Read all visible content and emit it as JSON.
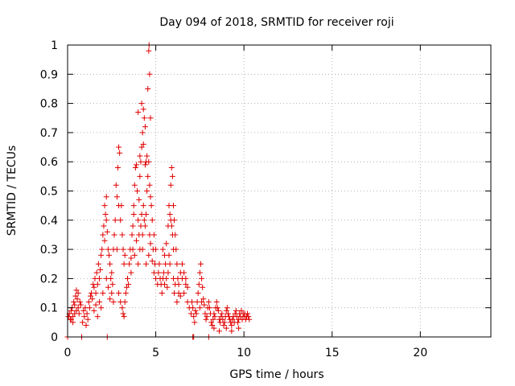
{
  "chart_data": {
    "type": "scatter",
    "title": "Day 094 of 2018, SRMTID for receiver roji",
    "xlabel": "GPS time / hours",
    "ylabel": "SRMTID / TECUs",
    "xlim": [
      0,
      24
    ],
    "ylim": [
      0,
      1
    ],
    "grid": true,
    "marker": "+",
    "marker_color": "#e00000",
    "x_ticks": [
      0,
      5,
      10,
      15,
      20
    ],
    "x_tick_labels": [
      "0",
      "5",
      "10",
      "15",
      "20"
    ],
    "y_ticks": [
      0,
      0.1,
      0.2,
      0.3,
      0.4,
      0.5,
      0.6,
      0.7,
      0.8,
      0.9,
      1
    ],
    "y_tick_labels": [
      "0",
      "0.1",
      "0.2",
      "0.3",
      "0.4",
      "0.5",
      "0.6",
      "0.7",
      "0.8",
      "0.9",
      "1"
    ],
    "series": [
      {
        "name": "SRMTID",
        "points": [
          [
            0.0,
            0.0
          ],
          [
            0.8,
            0.0
          ],
          [
            2.25,
            0.0
          ],
          [
            7.1,
            0.0
          ],
          [
            7.15,
            0.0
          ],
          [
            8.0,
            0.0
          ],
          [
            0.05,
            0.07
          ],
          [
            0.1,
            0.08
          ],
          [
            0.15,
            0.06
          ],
          [
            0.2,
            0.09
          ],
          [
            0.25,
            0.1
          ],
          [
            0.3,
            0.07
          ],
          [
            0.35,
            0.12
          ],
          [
            0.4,
            0.11
          ],
          [
            0.45,
            0.14
          ],
          [
            0.5,
            0.09
          ],
          [
            0.55,
            0.13
          ],
          [
            0.6,
            0.1
          ],
          [
            0.65,
            0.08
          ],
          [
            0.7,
            0.12
          ],
          [
            0.2,
            0.06
          ],
          [
            0.3,
            0.05
          ],
          [
            0.4,
            0.08
          ],
          [
            0.5,
            0.16
          ],
          [
            0.6,
            0.15
          ],
          [
            0.75,
            0.11
          ],
          [
            0.85,
            0.05
          ],
          [
            0.9,
            0.09
          ],
          [
            0.95,
            0.07
          ],
          [
            1.0,
            0.1
          ],
          [
            1.05,
            0.04
          ],
          [
            1.1,
            0.08
          ],
          [
            1.15,
            0.06
          ],
          [
            1.2,
            0.12
          ],
          [
            1.25,
            0.1
          ],
          [
            1.3,
            0.14
          ],
          [
            1.35,
            0.15
          ],
          [
            1.4,
            0.13
          ],
          [
            1.45,
            0.18
          ],
          [
            1.5,
            0.17
          ],
          [
            1.55,
            0.2
          ],
          [
            1.6,
            0.15
          ],
          [
            1.65,
            0.22
          ],
          [
            1.7,
            0.18
          ],
          [
            1.75,
            0.25
          ],
          [
            1.8,
            0.2
          ],
          [
            1.85,
            0.23
          ],
          [
            1.9,
            0.28
          ],
          [
            1.95,
            0.3
          ],
          [
            2.0,
            0.35
          ],
          [
            1.5,
            0.09
          ],
          [
            1.6,
            0.11
          ],
          [
            1.7,
            0.07
          ],
          [
            1.8,
            0.12
          ],
          [
            1.9,
            0.1
          ],
          [
            2.0,
            0.15
          ],
          [
            2.05,
            0.38
          ],
          [
            2.1,
            0.45
          ],
          [
            2.15,
            0.42
          ],
          [
            2.2,
            0.48
          ],
          [
            2.1,
            0.33
          ],
          [
            2.2,
            0.4
          ],
          [
            2.25,
            0.36
          ],
          [
            2.3,
            0.3
          ],
          [
            2.35,
            0.28
          ],
          [
            2.4,
            0.25
          ],
          [
            2.45,
            0.2
          ],
          [
            2.5,
            0.22
          ],
          [
            2.55,
            0.18
          ],
          [
            2.6,
            0.3
          ],
          [
            2.2,
            0.2
          ],
          [
            2.3,
            0.17
          ],
          [
            2.4,
            0.13
          ],
          [
            2.5,
            0.15
          ],
          [
            2.6,
            0.12
          ],
          [
            2.65,
            0.35
          ],
          [
            2.7,
            0.4
          ],
          [
            2.75,
            0.52
          ],
          [
            2.8,
            0.48
          ],
          [
            2.85,
            0.58
          ],
          [
            2.9,
            0.65
          ],
          [
            2.95,
            0.63
          ],
          [
            2.8,
            0.3
          ],
          [
            2.9,
            0.45
          ],
          [
            3.0,
            0.4
          ],
          [
            3.05,
            0.45
          ],
          [
            3.1,
            0.35
          ],
          [
            3.15,
            0.3
          ],
          [
            3.2,
            0.25
          ],
          [
            3.25,
            0.28
          ],
          [
            2.9,
            0.15
          ],
          [
            3.0,
            0.12
          ],
          [
            3.1,
            0.1
          ],
          [
            3.15,
            0.08
          ],
          [
            3.2,
            0.07
          ],
          [
            3.25,
            0.12
          ],
          [
            3.3,
            0.15
          ],
          [
            3.35,
            0.17
          ],
          [
            3.4,
            0.2
          ],
          [
            3.45,
            0.18
          ],
          [
            3.5,
            0.25
          ],
          [
            3.55,
            0.3
          ],
          [
            3.6,
            0.27
          ],
          [
            3.65,
            0.35
          ],
          [
            3.7,
            0.38
          ],
          [
            3.75,
            0.45
          ],
          [
            3.8,
            0.52
          ],
          [
            3.85,
            0.58
          ],
          [
            3.9,
            0.59
          ],
          [
            3.95,
            0.5
          ],
          [
            3.6,
            0.22
          ],
          [
            3.7,
            0.3
          ],
          [
            3.8,
            0.28
          ],
          [
            3.9,
            0.33
          ],
          [
            4.0,
            0.4
          ],
          [
            4.05,
            0.47
          ],
          [
            4.1,
            0.55
          ],
          [
            4.15,
            0.6
          ],
          [
            4.2,
            0.65
          ],
          [
            4.25,
            0.7
          ],
          [
            4.0,
            0.25
          ],
          [
            4.1,
            0.3
          ],
          [
            4.15,
            0.38
          ],
          [
            4.2,
            0.42
          ],
          [
            4.25,
            0.35
          ],
          [
            4.3,
            0.66
          ],
          [
            4.35,
            0.75
          ],
          [
            4.4,
            0.72
          ],
          [
            4.45,
            0.6
          ],
          [
            4.5,
            0.5
          ],
          [
            4.3,
            0.45
          ],
          [
            4.35,
            0.4
          ],
          [
            4.4,
            0.38
          ],
          [
            4.45,
            0.42
          ],
          [
            4.5,
            0.62
          ],
          [
            4.55,
            0.85
          ],
          [
            4.6,
            0.98
          ],
          [
            4.62,
            1.0
          ],
          [
            4.65,
            0.9
          ],
          [
            4.7,
            0.75
          ],
          [
            4.55,
            0.55
          ],
          [
            4.6,
            0.6
          ],
          [
            4.65,
            0.52
          ],
          [
            4.7,
            0.48
          ],
          [
            4.75,
            0.45
          ],
          [
            4.8,
            0.4
          ],
          [
            4.85,
            0.3
          ],
          [
            4.9,
            0.35
          ],
          [
            4.95,
            0.25
          ],
          [
            5.0,
            0.3
          ],
          [
            4.6,
            0.28
          ],
          [
            4.7,
            0.32
          ],
          [
            4.8,
            0.26
          ],
          [
            4.9,
            0.22
          ],
          [
            5.0,
            0.2
          ],
          [
            5.1,
            0.18
          ],
          [
            5.15,
            0.22
          ],
          [
            5.2,
            0.25
          ],
          [
            5.25,
            0.2
          ],
          [
            5.3,
            0.18
          ],
          [
            4.0,
            0.77
          ],
          [
            4.2,
            0.8
          ],
          [
            4.3,
            0.78
          ],
          [
            4.1,
            0.62
          ],
          [
            4.4,
            0.59
          ],
          [
            3.75,
            0.42
          ],
          [
            4.05,
            0.35
          ],
          [
            4.25,
            0.3
          ],
          [
            4.45,
            0.25
          ],
          [
            4.65,
            0.35
          ],
          [
            5.35,
            0.15
          ],
          [
            5.4,
            0.2
          ],
          [
            5.45,
            0.22
          ],
          [
            5.5,
            0.18
          ],
          [
            5.55,
            0.25
          ],
          [
            5.6,
            0.2
          ],
          [
            5.65,
            0.17
          ],
          [
            5.7,
            0.22
          ],
          [
            5.75,
            0.28
          ],
          [
            5.8,
            0.25
          ],
          [
            5.4,
            0.3
          ],
          [
            5.5,
            0.28
          ],
          [
            5.6,
            0.32
          ],
          [
            5.7,
            0.38
          ],
          [
            5.75,
            0.45
          ],
          [
            5.8,
            0.42
          ],
          [
            5.85,
            0.4
          ],
          [
            5.9,
            0.38
          ],
          [
            5.95,
            0.35
          ],
          [
            6.0,
            0.3
          ],
          [
            5.85,
            0.52
          ],
          [
            5.9,
            0.58
          ],
          [
            5.95,
            0.55
          ],
          [
            6.0,
            0.45
          ],
          [
            6.05,
            0.4
          ],
          [
            6.1,
            0.35
          ],
          [
            6.15,
            0.3
          ],
          [
            6.2,
            0.25
          ],
          [
            6.25,
            0.2
          ],
          [
            6.3,
            0.18
          ],
          [
            6.0,
            0.2
          ],
          [
            6.05,
            0.15
          ],
          [
            6.1,
            0.18
          ],
          [
            6.2,
            0.12
          ],
          [
            6.3,
            0.15
          ],
          [
            6.4,
            0.14
          ],
          [
            6.5,
            0.2
          ],
          [
            6.6,
            0.15
          ],
          [
            6.7,
            0.18
          ],
          [
            6.8,
            0.12
          ],
          [
            6.4,
            0.22
          ],
          [
            6.5,
            0.25
          ],
          [
            6.6,
            0.22
          ],
          [
            6.7,
            0.2
          ],
          [
            6.8,
            0.17
          ],
          [
            6.9,
            0.1
          ],
          [
            7.0,
            0.08
          ],
          [
            7.05,
            0.12
          ],
          [
            7.1,
            0.1
          ],
          [
            7.15,
            0.07
          ],
          [
            7.2,
            0.05
          ],
          [
            7.25,
            0.09
          ],
          [
            7.3,
            0.08
          ],
          [
            7.35,
            0.12
          ],
          [
            7.4,
            0.15
          ],
          [
            7.45,
            0.18
          ],
          [
            7.5,
            0.22
          ],
          [
            7.55,
            0.25
          ],
          [
            7.6,
            0.2
          ],
          [
            7.65,
            0.17
          ],
          [
            7.5,
            0.1
          ],
          [
            7.6,
            0.12
          ],
          [
            7.7,
            0.13
          ],
          [
            7.75,
            0.11
          ],
          [
            7.8,
            0.08
          ],
          [
            7.85,
            0.06
          ],
          [
            7.9,
            0.07
          ],
          [
            7.95,
            0.1
          ],
          [
            8.0,
            0.12
          ],
          [
            8.05,
            0.1
          ],
          [
            8.1,
            0.08
          ],
          [
            8.15,
            0.05
          ],
          [
            8.2,
            0.04
          ],
          [
            8.25,
            0.06
          ],
          [
            8.3,
            0.08
          ],
          [
            8.35,
            0.07
          ],
          [
            8.4,
            0.1
          ],
          [
            8.45,
            0.12
          ],
          [
            8.5,
            0.1
          ],
          [
            8.55,
            0.09
          ],
          [
            8.6,
            0.06
          ],
          [
            8.65,
            0.05
          ],
          [
            8.7,
            0.07
          ],
          [
            8.75,
            0.08
          ],
          [
            8.8,
            0.06
          ],
          [
            8.85,
            0.04
          ],
          [
            8.9,
            0.05
          ],
          [
            8.95,
            0.07
          ],
          [
            9.0,
            0.09
          ],
          [
            9.05,
            0.1
          ],
          [
            9.1,
            0.08
          ],
          [
            9.15,
            0.07
          ],
          [
            9.2,
            0.06
          ],
          [
            9.25,
            0.05
          ],
          [
            9.3,
            0.04
          ],
          [
            9.35,
            0.06
          ],
          [
            9.4,
            0.07
          ],
          [
            9.45,
            0.05
          ],
          [
            9.5,
            0.08
          ],
          [
            9.55,
            0.09
          ],
          [
            9.6,
            0.07
          ],
          [
            9.65,
            0.05
          ],
          [
            9.7,
            0.06
          ],
          [
            9.75,
            0.08
          ],
          [
            9.8,
            0.07
          ],
          [
            9.85,
            0.09
          ],
          [
            9.9,
            0.06
          ],
          [
            9.95,
            0.08
          ],
          [
            10.0,
            0.07
          ],
          [
            10.05,
            0.08
          ],
          [
            10.1,
            0.06
          ],
          [
            10.15,
            0.07
          ],
          [
            10.2,
            0.08
          ],
          [
            10.25,
            0.07
          ],
          [
            10.3,
            0.06
          ],
          [
            8.3,
            0.03
          ],
          [
            8.6,
            0.02
          ],
          [
            9.0,
            0.03
          ],
          [
            9.3,
            0.02
          ],
          [
            9.7,
            0.03
          ]
        ]
      }
    ]
  }
}
